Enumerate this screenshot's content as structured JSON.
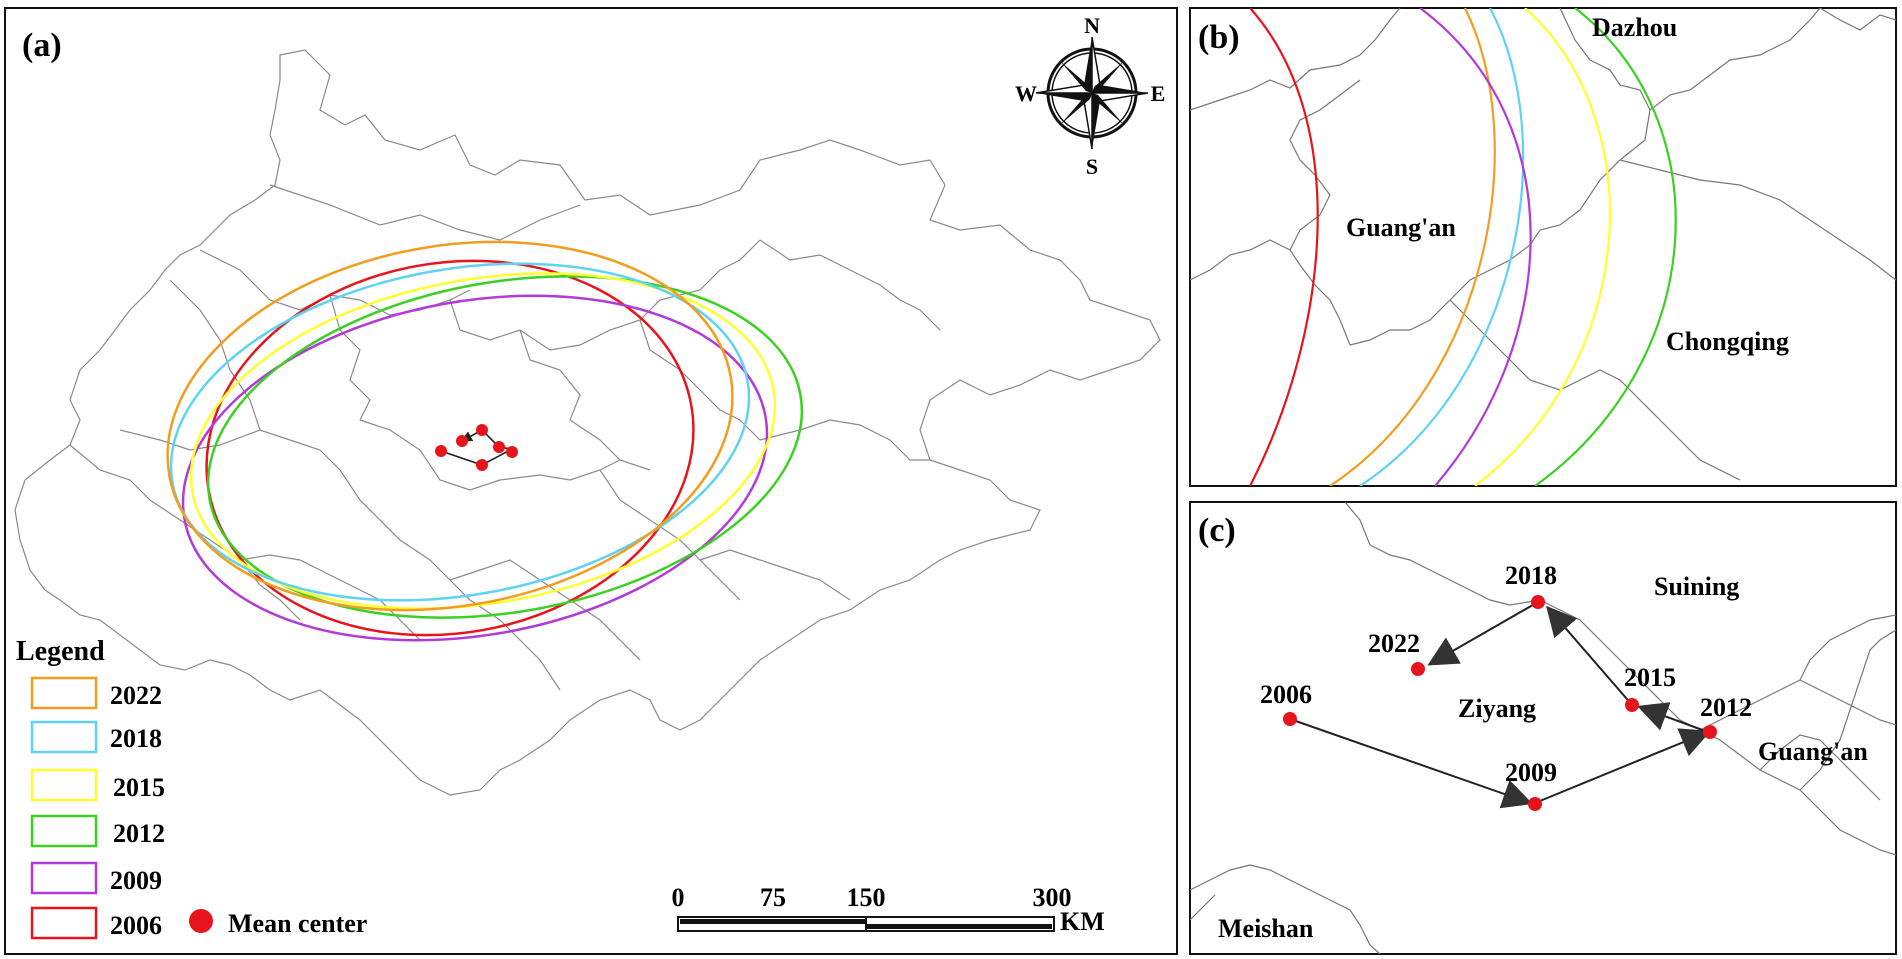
{
  "panels": {
    "a": {
      "label": "(a)",
      "compass": {
        "n": "N",
        "s": "S",
        "e": "E",
        "w": "W"
      },
      "legend": {
        "title": "Legend",
        "items": [
          {
            "year": "2022",
            "color": "#f39c1e"
          },
          {
            "year": "2018",
            "color": "#5fd3f3"
          },
          {
            "year": "2015",
            "color": "#ffff2e"
          },
          {
            "year": "2012",
            "color": "#3ad121"
          },
          {
            "year": "2009",
            "color": "#b23ad8"
          },
          {
            "year": "2006",
            "color": "#e8141b"
          }
        ],
        "mean_center_label": "Mean center",
        "mean_center_color": "#e8141b"
      },
      "scalebar": {
        "ticks": [
          "0",
          "75",
          "150",
          "300"
        ],
        "unit": "KM"
      }
    },
    "b": {
      "label": "(b)",
      "places": {
        "dazhou": "Dazhou",
        "guangan": "Guang'an",
        "chongqing": "Chongqing"
      }
    },
    "c": {
      "label": "(c)",
      "places": {
        "suining": "Suining",
        "ziyang": "Ziyang",
        "guangan": "Guang'an",
        "meishan": "Meishan"
      },
      "years": {
        "y2006": "2006",
        "y2009": "2009",
        "y2012": "2012",
        "y2015": "2015",
        "y2018": "2018",
        "y2022": "2022"
      }
    }
  }
}
